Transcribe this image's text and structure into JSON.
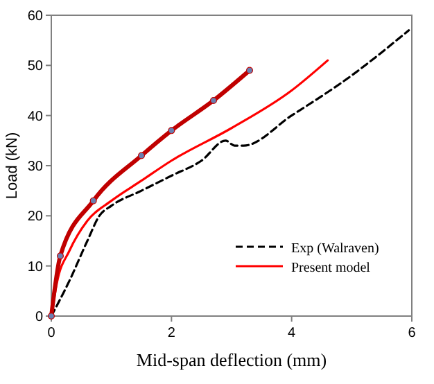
{
  "chart_data": {
    "type": "line",
    "xlabel": "Mid-span deflection (mm)",
    "ylabel": "Load (kN)",
    "xlim": [
      0,
      6
    ],
    "xticks": [
      0,
      2,
      4,
      6
    ],
    "ylim": [
      0,
      60
    ],
    "yticks": [
      0,
      10,
      20,
      30,
      40,
      50,
      60
    ],
    "grid": false,
    "legend": "bottom right",
    "series": [
      {
        "name": "Exp (Walraven)",
        "color": "#000000",
        "line_style": "dashed",
        "marker": "none",
        "x": [
          0,
          0.3,
          0.6,
          0.8,
          1,
          1.5,
          2,
          2.5,
          2.9,
          3.05,
          3.2,
          4,
          5,
          5.95
        ],
        "values": [
          0,
          7,
          15,
          20,
          22,
          25,
          28,
          31,
          35,
          34,
          34,
          40,
          48,
          57
        ]
      },
      {
        "name": "Present model",
        "color": "#ff0000",
        "line_style": "solid",
        "marker": "none",
        "x": [
          0,
          0.1,
          0.3,
          0.6,
          1,
          1.5,
          2,
          3,
          4,
          4.6
        ],
        "values": [
          0,
          7,
          13,
          19,
          23,
          27,
          31,
          37.5,
          45,
          51
        ]
      },
      {
        "color": "#c00000",
        "line_style": "solid",
        "marker": "circle",
        "x": [
          0,
          0.15,
          0.7,
          1.5,
          2,
          2.7,
          3.3
        ],
        "values": [
          0,
          12,
          23,
          32,
          37,
          43,
          49
        ]
      }
    ]
  }
}
